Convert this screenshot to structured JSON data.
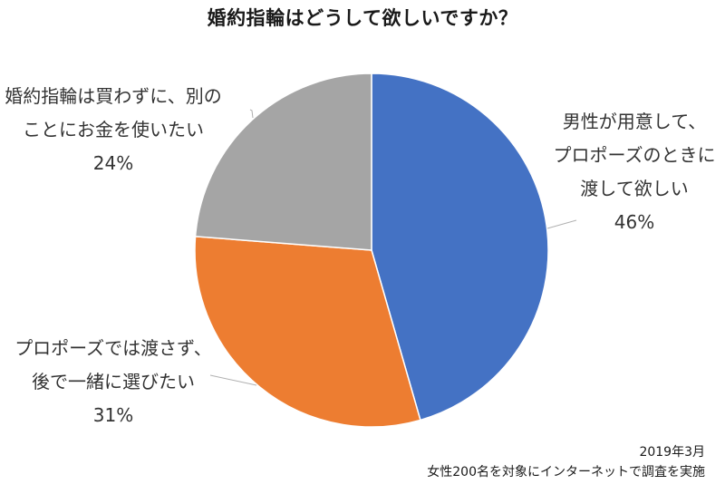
{
  "chart_data": {
    "type": "pie",
    "title": "婚約指輪はどうして欲しいですか？",
    "start_angle_deg": 0,
    "direction": "clockwise",
    "slices": [
      {
        "label": "男性が用意して、プロポーズのときに渡して欲しい",
        "lines": [
          "男性が用意して、",
          "プロポーズのときに",
          "渡して欲しい"
        ],
        "value": 46,
        "pct_label": "46%",
        "color": "#4472C4"
      },
      {
        "label": "プロポーズでは渡さず、後で一緒に選びたい",
        "lines": [
          "プロポーズでは渡さず、",
          "後で一緒に選びたい"
        ],
        "value": 31,
        "pct_label": "31%",
        "color": "#ED7D31"
      },
      {
        "label": "婚約指輪は買わずに、別のことにお金を使いたい",
        "lines": [
          "婚約指輪は買わずに、別の",
          "ことにお金を使いたい"
        ],
        "value": 24,
        "pct_label": "24%",
        "color": "#A5A5A5"
      }
    ],
    "legend": "none (data labels with leader lines)",
    "notes": [
      "2019年3月",
      "女性200名を対象にインターネットで調査を実施"
    ]
  },
  "title": "婚約指輪はどうして欲しいですか？",
  "labels": {
    "blue": {
      "line1": "男性が用意して、",
      "line2": "プロポーズのときに",
      "line3": "渡して欲しい",
      "pct": "46%"
    },
    "orange": {
      "line1": "プロポーズでは渡さず、",
      "line2": "後で一緒に選びたい",
      "pct": "31%"
    },
    "gray": {
      "line1": "婚約指輪は買わずに、別の",
      "line2": "ことにお金を使いたい",
      "pct": "24%"
    }
  },
  "notes": {
    "date": "2019年3月",
    "source": "女性200名を対象にインターネットで調査を実施"
  }
}
